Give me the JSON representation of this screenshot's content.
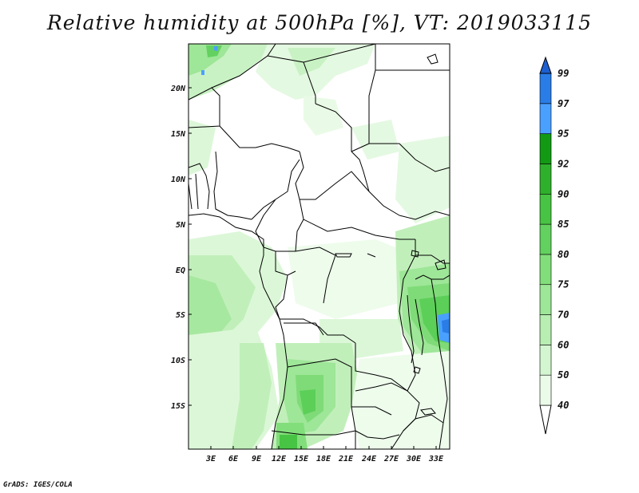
{
  "title": "Relative humidity at 500hPa [%], VT: 2019033115",
  "footer": "GrADS: IGES/COLA",
  "map": {
    "variable": "Relative humidity",
    "level": "500hPa",
    "units": "%",
    "valid_time": "2019033115",
    "lon_range": [
      0,
      34
    ],
    "lat_range": [
      -20,
      24
    ],
    "x_ticks": [
      "3E",
      "6E",
      "9E",
      "12E",
      "15E",
      "18E",
      "21E",
      "24E",
      "27E",
      "30E",
      "33E"
    ],
    "y_ticks": [
      "20N",
      "15N",
      "10N",
      "5N",
      "EQ",
      "5S",
      "10S",
      "15S"
    ]
  },
  "colorbar": {
    "levels": [
      "40",
      "50",
      "60",
      "70",
      "75",
      "80",
      "85",
      "90",
      "92",
      "95",
      "97",
      "99"
    ],
    "colors": [
      "#eafbe8",
      "#d3f5cf",
      "#b8eeb1",
      "#9ee698",
      "#82de7b",
      "#63d15f",
      "#47c443",
      "#2fb02c",
      "#129a14",
      "#4aa0ff",
      "#2a7de6",
      "#1d5fd0"
    ]
  }
}
